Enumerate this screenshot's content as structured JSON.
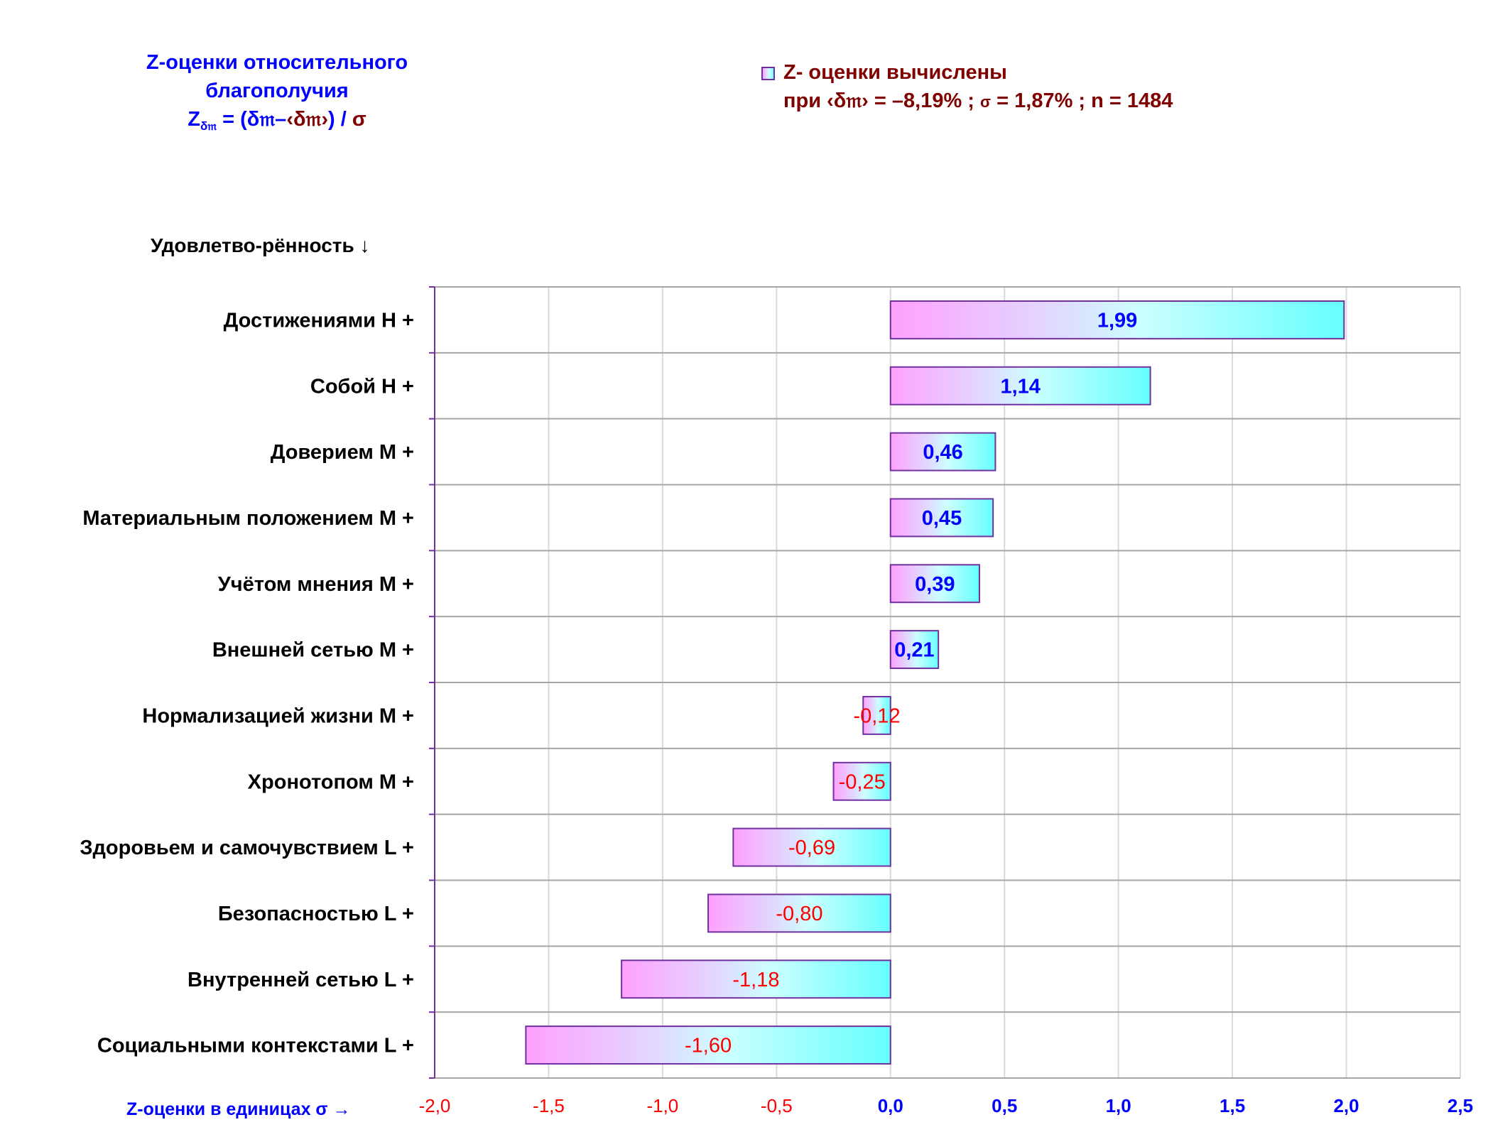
{
  "title": {
    "line1": "Z-оценки  относительного",
    "line2": "благополучия",
    "formula_z": "Z",
    "formula_sub": "δ𝔪",
    "formula_eq": " = (δ𝔪–",
    "formula_mean": "‹δ𝔪›",
    "formula_close": ") / ",
    "formula_sigma": "σ"
  },
  "legend": {
    "line1": "Z- оценки вычислены",
    "line2_prefix": "при ‹δ𝔪› = –8,19% ; ",
    "line2_sigma": "σ",
    "line2_suffix": " = 1,87% ; n = 1484"
  },
  "colors": {
    "bar_gradient_start": "#ffa0ff",
    "bar_gradient_mid": "#dde0ff",
    "bar_gradient_light": "#ccffff",
    "bar_gradient_end": "#66ffff",
    "bar_border": "#7030a0",
    "positive_text": "#0000ff",
    "negative_text": "#ff0000",
    "legend_text": "#800000",
    "h_grid": "#a6a6a6",
    "v_grid": "#d9d9d9",
    "axis": "#7030a0"
  },
  "chart_data": {
    "type": "bar",
    "orientation": "horizontal",
    "title": "Z-оценки  относительного благополучия",
    "ylabel": "Удовлетво-рённость ↓",
    "xlabel": "Z-оценки в единицах σ →",
    "xlim": [
      -2.0,
      2.5
    ],
    "x_ticks": [
      -2.0,
      -1.5,
      -1.0,
      -0.5,
      0.0,
      0.5,
      1.0,
      1.5,
      2.0,
      2.5
    ],
    "x_tick_labels": [
      "-2,0",
      "-1,5",
      "-1,0",
      "-0,5",
      "0,0",
      "0,5",
      "1,0",
      "1,5",
      "2,0",
      "2,5"
    ],
    "grid": true,
    "legend": "top-right",
    "categories": [
      "Достижениями  Н +",
      "Собой  Н +",
      "Доверием  М +",
      "Материальным положением  М +",
      "Учётом мнения  М +",
      "Внешней сетью  М +",
      "Нормализацией жизни  М +",
      "Хронотопом  М +",
      "Здоровьем и самочувствием  L +",
      "Безопасностью  L +",
      "Внутренней сетью  L +",
      "Социальными контекстами  L +"
    ],
    "values": [
      1.99,
      1.14,
      0.46,
      0.45,
      0.39,
      0.21,
      -0.12,
      -0.25,
      -0.69,
      -0.8,
      -1.18,
      -1.6
    ],
    "value_labels": [
      "1,99",
      "1,14",
      "0,46",
      "0,45",
      "0,39",
      "0,21",
      "-0,12",
      "-0,25",
      "-0,69",
      "-0,80",
      "-1,18",
      "-1,60"
    ],
    "series": [
      {
        "name": "Z- оценки вычислены"
      }
    ]
  }
}
